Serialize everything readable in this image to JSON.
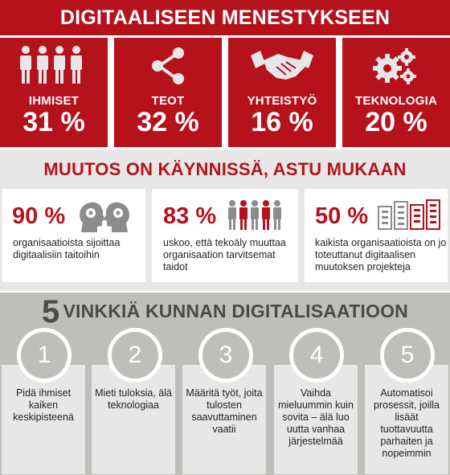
{
  "header": {
    "title": "DIGITAALISEEN MENESTYKSEEN VAIKUTTAVAT:"
  },
  "stats": [
    {
      "icon": "people-icon",
      "label": "IHMISET",
      "value": "31 %"
    },
    {
      "icon": "share-icon",
      "label": "TEOT",
      "value": "32 %"
    },
    {
      "icon": "handshake-icon",
      "label": "YHTEISTYÖ",
      "value": "16 %"
    },
    {
      "icon": "gears-icon",
      "label": "TEKNOLOGIA",
      "value": "20 %"
    }
  ],
  "change": {
    "title": "MUUTOS ON KÄYNNISSÄ, ASTU MUKAAN",
    "cards": [
      {
        "icon": "heads-gears-icon",
        "value": "90 %",
        "text": "organisaatioista sijoittaa digitaalisiin taitoihin"
      },
      {
        "icon": "people-icon",
        "value": "83 %",
        "text": "uskoo, että tekoäly muuttaa organisaation tarvitsemat taidot"
      },
      {
        "icon": "buildings-icon",
        "value": "50 %",
        "text": "kaikista organisaatioista on jo toteuttanut digitaalisen muutoksen projekteja"
      }
    ]
  },
  "tips": {
    "title_number": "5",
    "title_text": "VINKKIÄ KUNNAN DIGITALISAATIOON",
    "items": [
      {
        "num": "1",
        "text": "Pidä ihmiset kaiken keskipisteenä"
      },
      {
        "num": "2",
        "text": "Mieti tuloksia, älä teknologiaa"
      },
      {
        "num": "3",
        "text": "Määritä työt, joita tulosten saavuttaminen vaatii"
      },
      {
        "num": "4",
        "text": "Vaihda mieluummin kuin sovita – älä luo uutta vanhaa järjestelmää"
      },
      {
        "num": "5",
        "text": "Automatisoi prosessit, joilla lisäät tuottavuutta parhaiten ja nopeimmin"
      }
    ]
  },
  "colors": {
    "brand_red": "#b5121b",
    "light_gray": "#e7e7e8",
    "mid_gray": "#bebfba",
    "dark_text": "#231f20"
  }
}
